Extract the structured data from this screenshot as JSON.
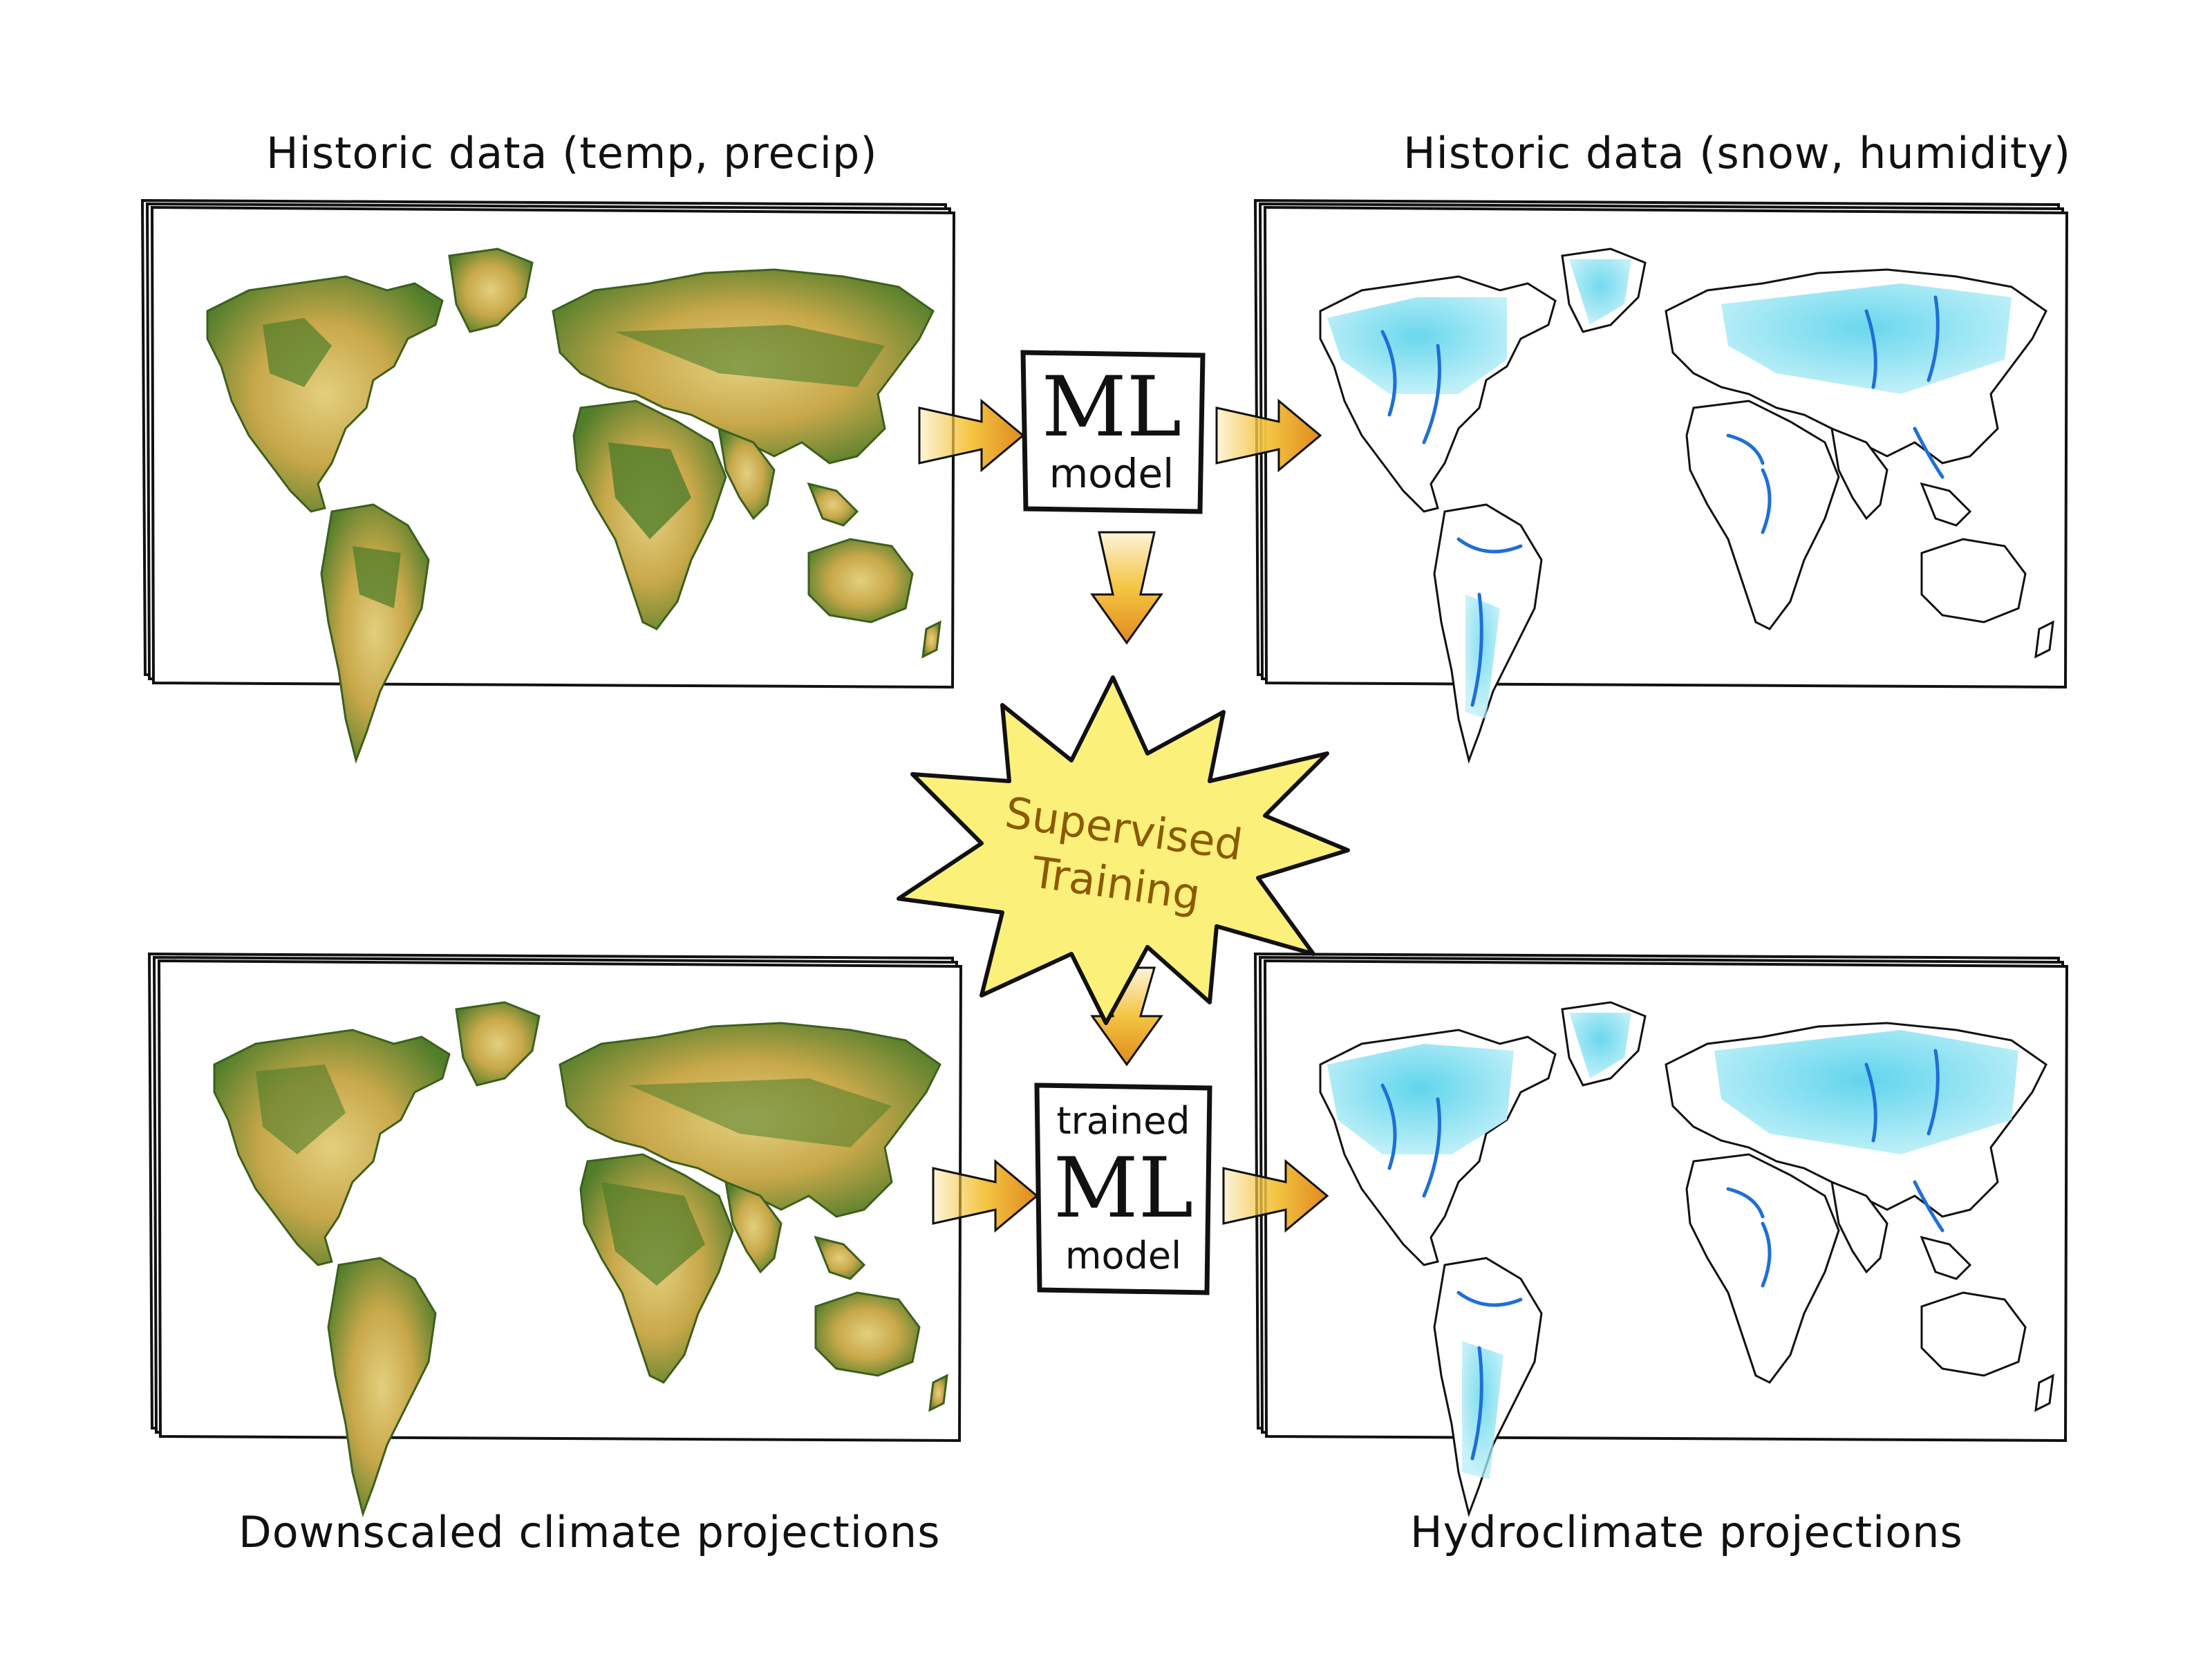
{
  "labels": {
    "top_left": "Historic data (temp, precip)",
    "top_right": "Historic data (snow, humidity)",
    "bottom_left": "Downscaled climate projections",
    "bottom_right": "Hydroclimate projections"
  },
  "boxes": {
    "model_top": {
      "line1": "ML",
      "line2": "model"
    },
    "model_bottom": {
      "line1": "trained",
      "line2": "ML",
      "line3": "model"
    }
  },
  "burst": {
    "line1": "Supervised",
    "line2": "Training"
  },
  "colors": {
    "land_green": "#4f7d2a",
    "land_tan": "#c8a84a",
    "land_sand": "#e3cf7e",
    "snow_cyan": "#7fdcef",
    "river_blue": "#1f6fd6",
    "arrow_orange": "#e08a1e",
    "arrow_yellow": "#f4c542",
    "burst_yellow": "#fbf07a",
    "ink": "#111111"
  }
}
